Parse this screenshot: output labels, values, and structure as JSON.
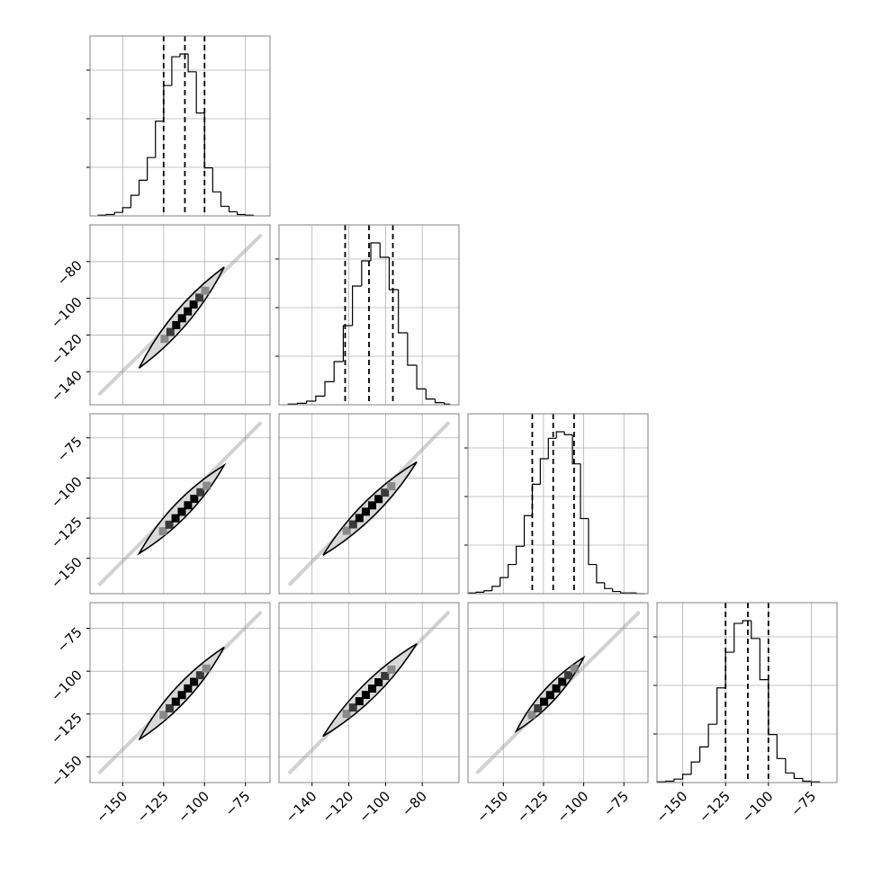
{
  "chart_data": {
    "type": "corner",
    "title": "",
    "colors": {
      "line": "#000000",
      "grid": "#b0b0b0",
      "frame": "#808080",
      "fill": "#d9d9d9"
    },
    "grid": true,
    "parameters": [
      {
        "index": 0,
        "range": [
          -170,
          -60
        ],
        "ticks": [
          -150,
          -125,
          -100,
          -75
        ],
        "tick_labels": [
          "−150",
          "−125",
          "−100",
          "−75"
        ],
        "quantiles": [
          -125,
          -112,
          -100
        ]
      },
      {
        "index": 1,
        "range": [
          -158,
          -60
        ],
        "ticks": [
          -140,
          -120,
          -100,
          -80
        ],
        "tick_labels": [
          "−140",
          "−120",
          "−100",
          "−80"
        ],
        "quantiles": [
          -122,
          -109,
          -96
        ]
      },
      {
        "index": 2,
        "range": [
          -172,
          -60
        ],
        "ticks": [
          -150,
          -125,
          -100,
          -75
        ],
        "tick_labels": [
          "−150",
          "−125",
          "−100",
          "−75"
        ],
        "quantiles": [
          -132,
          -119,
          -106
        ]
      },
      {
        "index": 3,
        "range": [
          -165,
          -60
        ],
        "ticks": [
          -150,
          -125,
          -100,
          -75
        ],
        "tick_labels": [
          "−150",
          "−125",
          "−100",
          "−75"
        ],
        "quantiles": [
          -125,
          -112,
          -100
        ]
      }
    ],
    "histograms": [
      {
        "param": 0,
        "bin_edges": [
          -165,
          -160,
          -155,
          -150,
          -145,
          -140,
          -135,
          -130,
          -125,
          -120,
          -115,
          -110,
          -105,
          -100,
          -95,
          -90,
          -85,
          -80,
          -75,
          -70
        ],
        "counts": [
          1,
          2,
          5,
          12,
          30,
          52,
          85,
          138,
          190,
          232,
          236,
          210,
          150,
          70,
          35,
          14,
          6,
          2,
          1
        ]
      },
      {
        "param": 1,
        "bin_edges": [
          -153,
          -148,
          -143,
          -138,
          -133,
          -128,
          -123,
          -118,
          -113,
          -108,
          -103,
          -98,
          -93,
          -88,
          -83,
          -78,
          -73,
          -68,
          -65
        ],
        "counts": [
          1,
          2,
          5,
          12,
          32,
          60,
          110,
          165,
          200,
          225,
          205,
          160,
          100,
          55,
          22,
          8,
          3,
          1
        ]
      },
      {
        "param": 2,
        "bin_edges": [
          -172,
          -167,
          -162,
          -157,
          -152,
          -147,
          -142,
          -137,
          -132,
          -127,
          -122,
          -117,
          -112,
          -107,
          -102,
          -97,
          -92,
          -87,
          -82,
          -77,
          -72,
          -67,
          -62
        ],
        "counts": [
          1,
          2,
          4,
          10,
          22,
          40,
          65,
          107,
          150,
          185,
          213,
          222,
          218,
          178,
          103,
          40,
          15,
          7,
          3,
          1,
          1,
          0
        ]
      },
      {
        "param": 3,
        "bin_edges": [
          -165,
          -160,
          -155,
          -150,
          -145,
          -140,
          -135,
          -130,
          -125,
          -120,
          -115,
          -110,
          -105,
          -100,
          -95,
          -90,
          -85,
          -80,
          -75,
          -70
        ],
        "counts": [
          1,
          2,
          5,
          12,
          30,
          52,
          85,
          138,
          190,
          232,
          236,
          210,
          150,
          70,
          35,
          14,
          6,
          2,
          1
        ]
      }
    ],
    "scatter_panels": [
      {
        "row": 1,
        "col": 0,
        "center": [
          -112,
          -109
        ],
        "p1": [
          -140,
          -138
        ],
        "p2": [
          -88,
          -83
        ],
        "halfwidth": 4
      },
      {
        "row": 2,
        "col": 0,
        "center": [
          -112,
          -119
        ],
        "p1": [
          -140,
          -147
        ],
        "p2": [
          -88,
          -92
        ],
        "halfwidth": 4
      },
      {
        "row": 2,
        "col": 1,
        "center": [
          -109,
          -119
        ],
        "p1": [
          -134,
          -148
        ],
        "p2": [
          -83,
          -90
        ],
        "halfwidth": 4
      },
      {
        "row": 3,
        "col": 0,
        "center": [
          -112,
          -112
        ],
        "p1": [
          -140,
          -140
        ],
        "p2": [
          -88,
          -86
        ],
        "halfwidth": 4
      },
      {
        "row": 3,
        "col": 1,
        "center": [
          -109,
          -112
        ],
        "p1": [
          -134,
          -138
        ],
        "p2": [
          -83,
          -84
        ],
        "halfwidth": 4
      },
      {
        "row": 3,
        "col": 2,
        "center": [
          -119,
          -112
        ],
        "p1": [
          -142,
          -135
        ],
        "p2": [
          -100,
          -92
        ],
        "halfwidth": 3.5
      }
    ]
  }
}
